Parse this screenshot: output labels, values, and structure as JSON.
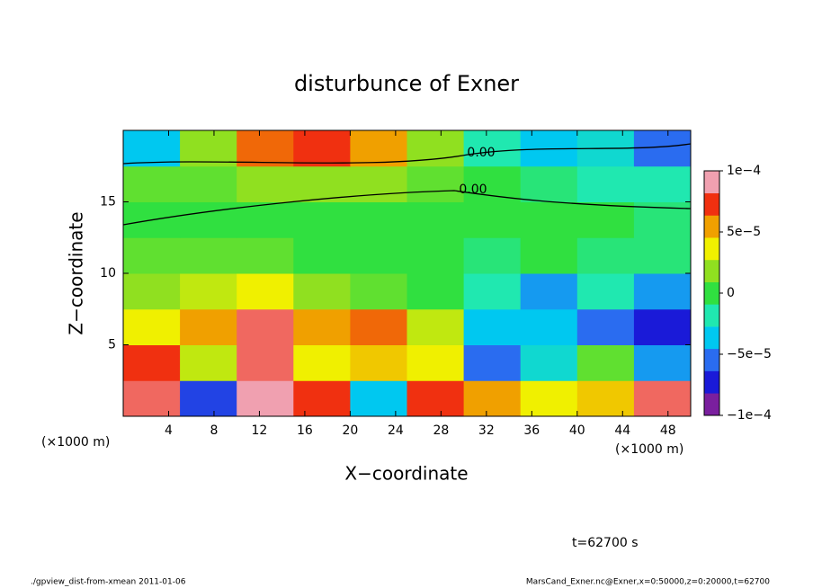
{
  "chart_data": {
    "type": "heatmap",
    "title": "disturbunce of Exner",
    "xlabel": "X−coordinate",
    "ylabel": "Z−coordinate",
    "x_unit": "(×1000 m)",
    "x": [
      2.5,
      7.5,
      12.5,
      17.5,
      22.5,
      27.5,
      32.5,
      37.5,
      42.5,
      47.5
    ],
    "y": [
      1.25,
      3.75,
      6.25,
      8.75,
      11.25,
      13.75,
      16.25,
      18.75
    ],
    "z": [
      [
        9e-05,
        -7e-05,
        0.0001,
        8e-05,
        -4e-05,
        8e-05,
        6e-05,
        4e-05,
        5e-05,
        9e-05
      ],
      [
        8e-05,
        3e-05,
        9e-05,
        4e-05,
        5e-05,
        4e-05,
        -6e-05,
        -3e-05,
        1e-05,
        -5e-05
      ],
      [
        4e-05,
        6e-05,
        9e-05,
        6e-05,
        7e-05,
        3e-05,
        -4e-05,
        -4e-05,
        -6e-05,
        -8e-05
      ],
      [
        2e-05,
        3e-05,
        4e-05,
        2e-05,
        1e-05,
        0,
        -2e-05,
        -5e-05,
        -2e-05,
        -5e-05
      ],
      [
        1e-05,
        1e-05,
        1e-05,
        0,
        0,
        0,
        -1e-05,
        0,
        -1e-05,
        -1e-05
      ],
      [
        0,
        0,
        0,
        0,
        0,
        0,
        0,
        0,
        0,
        -1e-05
      ],
      [
        1e-05,
        1e-05,
        2e-05,
        2e-05,
        2e-05,
        1e-05,
        0,
        -1e-05,
        -2e-05,
        -2e-05
      ],
      [
        -4e-05,
        2e-05,
        7e-05,
        8e-05,
        6e-05,
        2e-05,
        -2e-05,
        -4e-05,
        -3e-05,
        -6e-05
      ]
    ],
    "xlim": [
      0,
      50
    ],
    "ylim": [
      0,
      20
    ],
    "xticks": [
      4,
      8,
      12,
      16,
      20,
      24,
      28,
      32,
      36,
      40,
      44,
      48
    ],
    "yticks": [
      5,
      10,
      15
    ],
    "clim": [
      -0.0001,
      0.0001
    ],
    "cticks": [
      {
        "value": 0.0001,
        "label": "1e−4"
      },
      {
        "value": 5e-05,
        "label": "5e−5"
      },
      0,
      {
        "value": -5e-05,
        "label": "−5e−5"
      },
      {
        "value": -0.0001,
        "label": "−1e−4"
      }
    ],
    "colormap": [
      "#7a1f9e",
      "#1a1ad8",
      "#2a6cf0",
      "#00c8f0",
      "#20e8b0",
      "#30e040",
      "#90e020",
      "#f0f000",
      "#f0a000",
      "#f03010",
      "#f0a0b0"
    ],
    "contour_labels": [
      "0.00",
      "0.00"
    ],
    "time_label": "t=62700 s",
    "footer_left": "./gpview_dist-from-xmean  2011-01-06",
    "footer_right": "MarsCand_Exner.nc@Exner,x=0:50000,z=0:20000,t=62700"
  }
}
